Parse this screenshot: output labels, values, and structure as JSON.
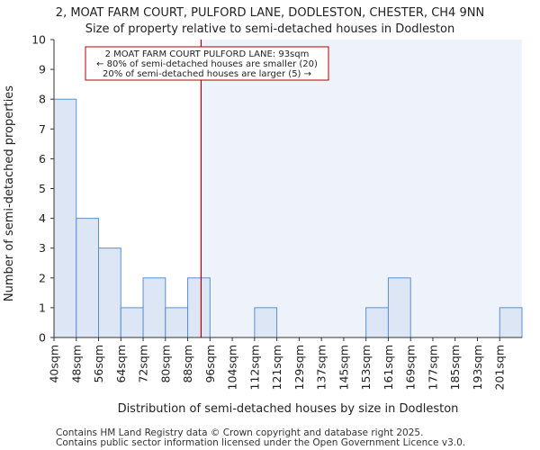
{
  "chart_data": {
    "type": "bar",
    "title": "2, MOAT FARM COURT, PULFORD LANE, DODLESTON, CHESTER, CH4 9NN",
    "subtitle": "Size of property relative to semi-detached houses in Dodleston",
    "xlabel": "Distribution of semi-detached houses by size in Dodleston",
    "ylabel": "Number of semi-detached properties",
    "categories": [
      "40sqm",
      "48sqm",
      "56sqm",
      "64sqm",
      "72sqm",
      "80sqm",
      "88sqm",
      "96sqm",
      "104sqm",
      "112sqm",
      "121sqm",
      "129sqm",
      "137sqm",
      "145sqm",
      "153sqm",
      "161sqm",
      "169sqm",
      "177sqm",
      "185sqm",
      "193sqm",
      "201sqm"
    ],
    "values": [
      8,
      4,
      3,
      1,
      2,
      1,
      2,
      0,
      0,
      1,
      0,
      0,
      0,
      0,
      1,
      2,
      0,
      0,
      0,
      0,
      1
    ],
    "ylim": [
      0,
      10
    ],
    "yticks": [
      0,
      1,
      2,
      3,
      4,
      5,
      6,
      7,
      8,
      9,
      10
    ],
    "grid": false,
    "marker": {
      "value_index": 6.6,
      "label": "93sqm"
    },
    "annotation": [
      "2 MOAT FARM COURT PULFORD LANE: 93sqm",
      "← 80% of semi-detached houses are smaller (20)",
      "20% of semi-detached houses are larger (5) →"
    ],
    "footer": [
      "Contains HM Land Registry data © Crown copyright and database right 2025.",
      "Contains public sector information licensed under the Open Government Licence v3.0."
    ],
    "colors": {
      "bar_fill": "#dce6f5",
      "bar_stroke": "#5b8fd0",
      "marker": "#b30000",
      "shade": "#eef2fa",
      "axis": "#333333"
    }
  }
}
